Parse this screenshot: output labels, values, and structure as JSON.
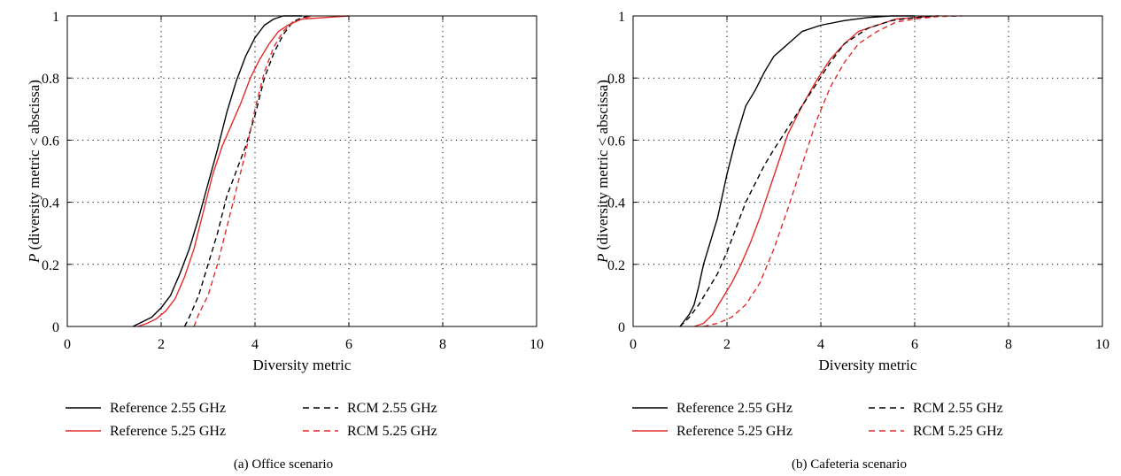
{
  "chart_data": [
    {
      "type": "line",
      "caption": "(a)  Office scenario",
      "xlabel": "Diversity metric",
      "ylabel_italic": "P",
      "ylabel_rest": " (diversity metric < abscissa)",
      "xlim": [
        0,
        10
      ],
      "ylim": [
        0,
        1
      ],
      "xticks": [
        0,
        2,
        4,
        6,
        8,
        10
      ],
      "yticks": [
        0,
        0.2,
        0.4,
        0.6,
        0.8,
        1
      ],
      "xtick_labels": [
        "0",
        "2",
        "4",
        "6",
        "8",
        "10"
      ],
      "ytick_labels": [
        "0",
        "0.2",
        "0.4",
        "0.6",
        "0.8",
        "1"
      ],
      "grid": true,
      "legend_position": "bottom",
      "series": [
        {
          "name": "Reference 2.55 GHz",
          "color": "#000000",
          "dash": "solid",
          "x": [
            1.4,
            1.6,
            1.8,
            2.0,
            2.2,
            2.4,
            2.6,
            2.8,
            3.0,
            3.2,
            3.4,
            3.6,
            3.8,
            4.0,
            4.2,
            4.4,
            4.6,
            4.8,
            5.0
          ],
          "y": [
            0,
            0.015,
            0.03,
            0.06,
            0.1,
            0.17,
            0.25,
            0.35,
            0.46,
            0.57,
            0.69,
            0.79,
            0.87,
            0.93,
            0.97,
            0.99,
            1.0,
            1.0,
            1.0
          ]
        },
        {
          "name": "Reference 5.25 GHz",
          "color": "#e32b2b",
          "dash": "solid",
          "x": [
            1.5,
            1.7,
            1.9,
            2.1,
            2.3,
            2.5,
            2.7,
            2.9,
            3.1,
            3.3,
            3.5,
            3.7,
            3.9,
            4.1,
            4.3,
            4.5,
            4.7,
            5.0,
            5.5,
            6.0
          ],
          "y": [
            0,
            0.01,
            0.025,
            0.05,
            0.09,
            0.16,
            0.25,
            0.37,
            0.49,
            0.58,
            0.65,
            0.72,
            0.8,
            0.86,
            0.91,
            0.95,
            0.97,
            0.99,
            0.995,
            1.0
          ]
        },
        {
          "name": "RCM 2.55 GHz",
          "color": "#000000",
          "dash": "dashed",
          "x": [
            2.5,
            2.6,
            2.8,
            3.0,
            3.2,
            3.4,
            3.6,
            3.8,
            4.0,
            4.2,
            4.4,
            4.6,
            4.8,
            5.0,
            5.2
          ],
          "y": [
            0,
            0.03,
            0.1,
            0.2,
            0.3,
            0.42,
            0.5,
            0.58,
            0.68,
            0.8,
            0.88,
            0.94,
            0.98,
            0.995,
            1.0
          ]
        },
        {
          "name": "RCM 5.25 GHz",
          "color": "#e32b2b",
          "dash": "dashed",
          "x": [
            2.7,
            2.8,
            3.0,
            3.2,
            3.4,
            3.6,
            3.8,
            4.0,
            4.2,
            4.4,
            4.6,
            4.8,
            5.0,
            5.2
          ],
          "y": [
            0,
            0.04,
            0.1,
            0.2,
            0.32,
            0.44,
            0.56,
            0.7,
            0.82,
            0.9,
            0.95,
            0.98,
            0.99,
            1.0
          ]
        }
      ]
    },
    {
      "type": "line",
      "caption": "(b)  Cafeteria scenario",
      "xlabel": "Diversity metric",
      "ylabel_italic": "P",
      "ylabel_rest": " (diversity metric < abscissa)",
      "xlim": [
        0,
        10
      ],
      "ylim": [
        0,
        1
      ],
      "xticks": [
        0,
        2,
        4,
        6,
        8,
        10
      ],
      "yticks": [
        0,
        0.2,
        0.4,
        0.6,
        0.8,
        1
      ],
      "xtick_labels": [
        "0",
        "2",
        "4",
        "6",
        "8",
        "10"
      ],
      "ytick_labels": [
        "0",
        "0.2",
        "0.4",
        "0.6",
        "0.8",
        "1"
      ],
      "grid": true,
      "legend_position": "bottom",
      "series": [
        {
          "name": "Reference 2.55 GHz",
          "color": "#000000",
          "dash": "solid",
          "x": [
            1.0,
            1.1,
            1.2,
            1.3,
            1.4,
            1.5,
            1.6,
            1.8,
            2.0,
            2.2,
            2.4,
            2.6,
            2.8,
            3.0,
            3.3,
            3.6,
            4.0,
            4.5,
            5.0,
            5.5,
            6.0
          ],
          "y": [
            0,
            0.02,
            0.04,
            0.07,
            0.13,
            0.2,
            0.25,
            0.35,
            0.49,
            0.61,
            0.71,
            0.76,
            0.82,
            0.87,
            0.91,
            0.95,
            0.97,
            0.985,
            0.995,
            1.0,
            1.0
          ]
        },
        {
          "name": "Reference 5.25 GHz",
          "color": "#e32b2b",
          "dash": "solid",
          "x": [
            1.3,
            1.5,
            1.7,
            1.9,
            2.1,
            2.3,
            2.5,
            2.7,
            2.9,
            3.1,
            3.3,
            3.6,
            3.9,
            4.2,
            4.5,
            4.8,
            5.2,
            5.6,
            6.0,
            6.5
          ],
          "y": [
            0,
            0.01,
            0.04,
            0.09,
            0.14,
            0.2,
            0.27,
            0.35,
            0.44,
            0.53,
            0.62,
            0.71,
            0.79,
            0.86,
            0.91,
            0.95,
            0.97,
            0.99,
            0.995,
            1.0
          ]
        },
        {
          "name": "RCM 2.55 GHz",
          "color": "#000000",
          "dash": "dashed",
          "x": [
            1.0,
            1.2,
            1.4,
            1.6,
            1.8,
            2.0,
            2.2,
            2.4,
            2.6,
            2.8,
            3.0,
            3.3,
            3.6,
            3.9,
            4.2,
            4.5,
            5.0,
            5.5,
            6.0,
            6.5
          ],
          "y": [
            0,
            0.03,
            0.07,
            0.12,
            0.17,
            0.24,
            0.32,
            0.4,
            0.46,
            0.52,
            0.57,
            0.64,
            0.71,
            0.78,
            0.85,
            0.91,
            0.96,
            0.985,
            0.995,
            1.0
          ]
        },
        {
          "name": "RCM 5.25 GHz",
          "color": "#e32b2b",
          "dash": "dashed",
          "x": [
            1.5,
            1.8,
            2.1,
            2.4,
            2.7,
            3.0,
            3.3,
            3.6,
            3.9,
            4.2,
            4.5,
            4.8,
            5.2,
            5.6,
            6.0,
            6.5,
            7.0
          ],
          "y": [
            0,
            0.01,
            0.03,
            0.07,
            0.14,
            0.25,
            0.38,
            0.52,
            0.66,
            0.77,
            0.85,
            0.91,
            0.95,
            0.98,
            0.99,
            0.998,
            1.0
          ]
        }
      ]
    }
  ]
}
